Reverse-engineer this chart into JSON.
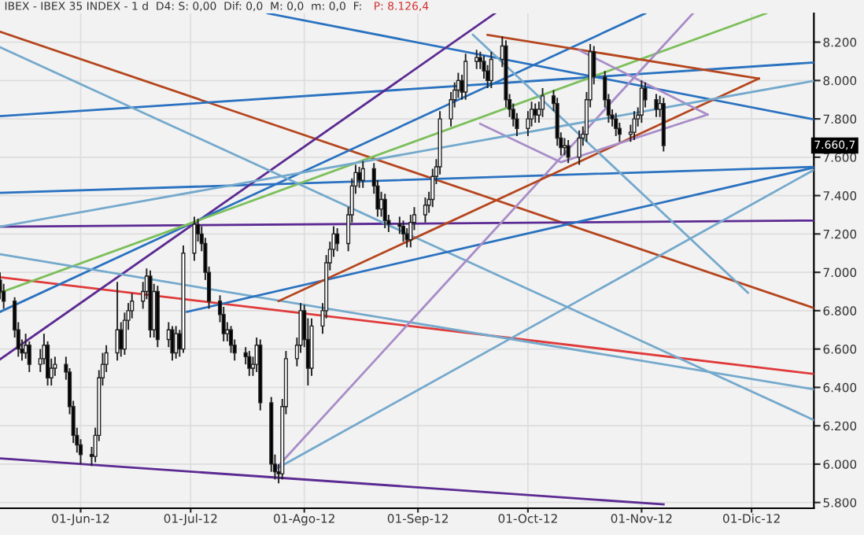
{
  "chart_data": {
    "type": "candlestick",
    "title": "IBEX - IBEX 35 INDEX - 1 d  D4: S: 0,00  Dif: 0,0  M: 0,0  m: 0,0  F:",
    "annotations": [
      "P: 8.126,4",
      {
        "text": "7.660,7",
        "y": 7660.7
      }
    ],
    "x": [
      "2012-05-10",
      "2012-05-11",
      "2012-05-14",
      "2012-05-15",
      "2012-05-16",
      "2012-05-17",
      "2012-05-18",
      "2012-05-21",
      "2012-05-22",
      "2012-05-23",
      "2012-05-24",
      "2012-05-25",
      "2012-05-28",
      "2012-05-29",
      "2012-05-30",
      "2012-05-31",
      "2012-06-01",
      "2012-06-04",
      "2012-06-05",
      "2012-06-06",
      "2012-06-07",
      "2012-06-08",
      "2012-06-11",
      "2012-06-12",
      "2012-06-13",
      "2012-06-14",
      "2012-06-15",
      "2012-06-18",
      "2012-06-19",
      "2012-06-20",
      "2012-06-21",
      "2012-06-22",
      "2012-06-25",
      "2012-06-26",
      "2012-06-27",
      "2012-06-28",
      "2012-06-29",
      "2012-07-02",
      "2012-07-03",
      "2012-07-04",
      "2012-07-05",
      "2012-07-06",
      "2012-07-09",
      "2012-07-10",
      "2012-07-11",
      "2012-07-12",
      "2012-07-13",
      "2012-07-16",
      "2012-07-17",
      "2012-07-18",
      "2012-07-19",
      "2012-07-20",
      "2012-07-23",
      "2012-07-24",
      "2012-07-25",
      "2012-07-26",
      "2012-07-27",
      "2012-07-30",
      "2012-07-31",
      "2012-08-01",
      "2012-08-02",
      "2012-08-03",
      "2012-08-06",
      "2012-08-07",
      "2012-08-08",
      "2012-08-09",
      "2012-08-10",
      "2012-08-13",
      "2012-08-14",
      "2012-08-15",
      "2012-08-16",
      "2012-08-17",
      "2012-08-20",
      "2012-08-21",
      "2012-08-22",
      "2012-08-23",
      "2012-08-24",
      "2012-08-27",
      "2012-08-28",
      "2012-08-29",
      "2012-08-30",
      "2012-08-31",
      "2012-09-03",
      "2012-09-04",
      "2012-09-05",
      "2012-09-06",
      "2012-09-07",
      "2012-09-10",
      "2012-09-11",
      "2012-09-12",
      "2012-09-13",
      "2012-09-14",
      "2012-09-17",
      "2012-09-18",
      "2012-09-19",
      "2012-09-20",
      "2012-09-21",
      "2012-09-24",
      "2012-09-25",
      "2012-09-26",
      "2012-09-27",
      "2012-09-28",
      "2012-10-01",
      "2012-10-02",
      "2012-10-03",
      "2012-10-04",
      "2012-10-05",
      "2012-10-08",
      "2012-10-09",
      "2012-10-10",
      "2012-10-11",
      "2012-10-12",
      "2012-10-15",
      "2012-10-16",
      "2012-10-17",
      "2012-10-18",
      "2012-10-19",
      "2012-10-22",
      "2012-10-23",
      "2012-10-24",
      "2012-10-25",
      "2012-10-26",
      "2012-10-29",
      "2012-10-30",
      "2012-10-31",
      "2012-11-01",
      "2012-11-02",
      "2012-11-05",
      "2012-11-06",
      "2012-11-07"
    ],
    "ohlc": [
      [
        6960,
        7000,
        6860,
        6900
      ],
      [
        6900,
        6940,
        6810,
        6850
      ],
      [
        6850,
        6870,
        6660,
        6700
      ],
      [
        6700,
        6740,
        6560,
        6600
      ],
      [
        6600,
        6650,
        6540,
        6580
      ],
      [
        6580,
        6680,
        6550,
        6620
      ],
      [
        6620,
        6640,
        6480,
        6520
      ],
      [
        6520,
        6600,
        6480,
        6550
      ],
      [
        6550,
        6680,
        6520,
        6620
      ],
      [
        6620,
        6640,
        6410,
        6450
      ],
      [
        6450,
        6550,
        6410,
        6500
      ],
      [
        6500,
        6560,
        6460,
        6520
      ],
      [
        6520,
        6560,
        6440,
        6480
      ],
      [
        6480,
        6500,
        6260,
        6300
      ],
      [
        6300,
        6330,
        6110,
        6150
      ],
      [
        6150,
        6190,
        6060,
        6100
      ],
      [
        6100,
        6130,
        6000,
        6050
      ],
      [
        6050,
        6090,
        5990,
        6040
      ],
      [
        6040,
        6190,
        6010,
        6150
      ],
      [
        6150,
        6490,
        6120,
        6450
      ],
      [
        6450,
        6580,
        6410,
        6520
      ],
      [
        6520,
        6620,
        6480,
        6580
      ],
      [
        6580,
        6950,
        6540,
        6700
      ],
      [
        6700,
        6740,
        6560,
        6600
      ],
      [
        6600,
        6790,
        6570,
        6750
      ],
      [
        6750,
        6840,
        6700,
        6800
      ],
      [
        6800,
        6890,
        6760,
        6850
      ],
      [
        6850,
        6950,
        6810,
        6900
      ],
      [
        6900,
        7020,
        6860,
        6980
      ],
      [
        6980,
        7010,
        6660,
        6700
      ],
      [
        6700,
        6940,
        6660,
        6900
      ],
      [
        6900,
        6930,
        6610,
        6650
      ],
      [
        6650,
        6740,
        6610,
        6700
      ],
      [
        6700,
        6720,
        6540,
        6580
      ],
      [
        6580,
        6720,
        6550,
        6680
      ],
      [
        6680,
        6700,
        6560,
        6600
      ],
      [
        6600,
        7140,
        6580,
        7100
      ],
      [
        7100,
        7290,
        7060,
        7250
      ],
      [
        7250,
        7280,
        7160,
        7200
      ],
      [
        7200,
        7240,
        7110,
        7150
      ],
      [
        7150,
        7180,
        6960,
        7000
      ],
      [
        7000,
        7030,
        6810,
        6850
      ],
      [
        6850,
        6880,
        6740,
        6780
      ],
      [
        6780,
        6820,
        6640,
        6680
      ],
      [
        6680,
        6740,
        6640,
        6700
      ],
      [
        6700,
        6720,
        6580,
        6620
      ],
      [
        6620,
        6650,
        6540,
        6580
      ],
      [
        6580,
        6610,
        6520,
        6560
      ],
      [
        6560,
        6590,
        6460,
        6500
      ],
      [
        6500,
        6560,
        6460,
        6520
      ],
      [
        6520,
        6660,
        6480,
        6620
      ],
      [
        6620,
        6650,
        6280,
        6320
      ],
      [
        6320,
        6350,
        5960,
        6000
      ],
      [
        6000,
        6050,
        5920,
        5960
      ],
      [
        5960,
        6000,
        5900,
        5950
      ],
      [
        5950,
        6340,
        5920,
        6300
      ],
      [
        6300,
        6590,
        6260,
        6550
      ],
      [
        6550,
        6660,
        6510,
        6620
      ],
      [
        6620,
        6840,
        6580,
        6800
      ],
      [
        6800,
        6830,
        6610,
        6650
      ],
      [
        6650,
        6760,
        6410,
        6500
      ],
      [
        6500,
        6760,
        6460,
        6720
      ],
      [
        6720,
        6840,
        6680,
        6800
      ],
      [
        6800,
        7090,
        6760,
        7050
      ],
      [
        7050,
        7160,
        7010,
        7120
      ],
      [
        7120,
        7240,
        7080,
        7200
      ],
      [
        7200,
        7230,
        7110,
        7150
      ],
      [
        7150,
        7340,
        7110,
        7300
      ],
      [
        7300,
        7490,
        7260,
        7450
      ],
      [
        7450,
        7560,
        7410,
        7520
      ],
      [
        7520,
        7550,
        7440,
        7480
      ],
      [
        7480,
        7580,
        7440,
        7540
      ],
      [
        7540,
        7570,
        7410,
        7450
      ],
      [
        7450,
        7480,
        7290,
        7330
      ],
      [
        7330,
        7420,
        7290,
        7380
      ],
      [
        7380,
        7410,
        7230,
        7270
      ],
      [
        7270,
        7300,
        7210,
        7250
      ],
      [
        7250,
        7290,
        7200,
        7240
      ],
      [
        7240,
        7270,
        7160,
        7200
      ],
      [
        7200,
        7230,
        7130,
        7170
      ],
      [
        7170,
        7300,
        7130,
        7260
      ],
      [
        7260,
        7340,
        7220,
        7300
      ],
      [
        7300,
        7390,
        7260,
        7350
      ],
      [
        7350,
        7420,
        7310,
        7380
      ],
      [
        7380,
        7540,
        7340,
        7500
      ],
      [
        7500,
        7590,
        7460,
        7550
      ],
      [
        7550,
        7840,
        7510,
        7800
      ],
      [
        7800,
        7940,
        7760,
        7900
      ],
      [
        7900,
        7990,
        7860,
        7950
      ],
      [
        7950,
        8040,
        7910,
        8000
      ],
      [
        8000,
        8030,
        7900,
        7940
      ],
      [
        7940,
        8140,
        7900,
        8100
      ],
      [
        8100,
        8160,
        8060,
        8120
      ],
      [
        8120,
        8150,
        8060,
        8100
      ],
      [
        8100,
        8130,
        8010,
        8050
      ],
      [
        8050,
        8080,
        7960,
        8000
      ],
      [
        8000,
        8150,
        7960,
        8110
      ],
      [
        8110,
        8230,
        8070,
        8180
      ],
      [
        8180,
        8210,
        7860,
        7900
      ],
      [
        7900,
        7930,
        7810,
        7850
      ],
      [
        7850,
        7880,
        7760,
        7800
      ],
      [
        7800,
        7830,
        7710,
        7750
      ],
      [
        7750,
        7840,
        7710,
        7800
      ],
      [
        7800,
        7890,
        7760,
        7850
      ],
      [
        7850,
        7880,
        7780,
        7820
      ],
      [
        7820,
        7890,
        7780,
        7850
      ],
      [
        7850,
        7960,
        7810,
        7920
      ],
      [
        7920,
        7950,
        7840,
        7880
      ],
      [
        7880,
        7910,
        7660,
        7700
      ],
      [
        7700,
        7730,
        7610,
        7650
      ],
      [
        7650,
        7700,
        7610,
        7660
      ],
      [
        7660,
        7690,
        7570,
        7600
      ],
      [
        7600,
        7740,
        7560,
        7700
      ],
      [
        7700,
        7760,
        7660,
        7720
      ],
      [
        7720,
        7940,
        7680,
        7900
      ],
      [
        7900,
        8190,
        7860,
        8150
      ],
      [
        8150,
        8180,
        7980,
        8020
      ],
      [
        8020,
        8050,
        7860,
        7900
      ],
      [
        7900,
        7930,
        7780,
        7820
      ],
      [
        7820,
        7850,
        7760,
        7800
      ],
      [
        7800,
        7830,
        7710,
        7750
      ],
      [
        7750,
        7780,
        7680,
        7720
      ],
      [
        7720,
        7770,
        7680,
        7730
      ],
      [
        7730,
        7840,
        7690,
        7800
      ],
      [
        7800,
        7860,
        7760,
        7820
      ],
      [
        7820,
        8000,
        7780,
        7960
      ],
      [
        7960,
        7990,
        7860,
        7900
      ],
      [
        7900,
        7930,
        7810,
        7850
      ],
      [
        7850,
        7920,
        7810,
        7880
      ],
      [
        7880,
        7910,
        7630,
        7660.7
      ]
    ],
    "series": [
      {
        "type": "line",
        "color": "#5b2a92",
        "x": [
          "2012-05-10",
          "2012-11-07"
        ],
        "values": [
          6030,
          5790
        ]
      },
      {
        "type": "line",
        "color": "#e03a3a",
        "x": [
          "2012-05-10",
          "2012-12-18"
        ],
        "values": [
          6974,
          6470
        ]
      },
      {
        "type": "line",
        "color": "#b5461e",
        "x": [
          "2012-05-10",
          "2012-12-18"
        ],
        "values": [
          8254,
          6814
        ]
      },
      {
        "type": "line",
        "color": "#5b2a92",
        "x": [
          "2012-05-10",
          "2012-12-18"
        ],
        "values": [
          7238,
          7270
        ]
      },
      {
        "type": "line",
        "color": "#2a72c0",
        "x": [
          "2012-05-10",
          "2012-12-18"
        ],
        "values": [
          7414,
          7550
        ]
      },
      {
        "type": "line",
        "color": "#2a72c0",
        "x": [
          "2012-05-10",
          "2012-12-18"
        ],
        "values": [
          7814,
          8094
        ]
      },
      {
        "type": "line",
        "color": "#2a72c0",
        "x": [
          "2012-07-22",
          "2012-12-18"
        ],
        "values": [
          8350,
          7797
        ]
      },
      {
        "type": "line",
        "color": "#5b2a92",
        "x": [
          "2012-05-10",
          "2012-09-22"
        ],
        "values": [
          6546,
          8350
        ]
      },
      {
        "type": "line",
        "color": "#2a72c0",
        "x": [
          "2012-05-10",
          "2012-11-02"
        ],
        "values": [
          6794,
          8350
        ]
      },
      {
        "type": "line",
        "color": "#7cbf5a",
        "x": [
          "2012-05-10",
          "2012-12-05"
        ],
        "values": [
          6894,
          8350
        ]
      },
      {
        "type": "line",
        "color": "#74a9cc",
        "x": [
          "2012-05-10",
          "2012-12-18"
        ],
        "values": [
          8174,
          6230
        ]
      },
      {
        "type": "line",
        "color": "#74a9cc",
        "x": [
          "2012-05-10",
          "2012-12-18"
        ],
        "values": [
          7094,
          6390
        ]
      },
      {
        "type": "line",
        "color": "#2a72c0",
        "x": [
          "2012-06-30",
          "2012-12-18"
        ],
        "values": [
          6794,
          7546
        ]
      },
      {
        "type": "line",
        "color": "#74a9cc",
        "x": [
          "2012-07-24",
          "2012-12-18"
        ],
        "values": [
          5972,
          7534
        ]
      },
      {
        "type": "line",
        "color": "#a88cc8",
        "x": [
          "2012-07-24",
          "2012-11-15"
        ],
        "values": [
          5972,
          8350
        ]
      },
      {
        "type": "line",
        "color": "#b5461e",
        "x": [
          "2012-07-25",
          "2012-12-03"
        ],
        "values": [
          6850,
          8010
        ]
      },
      {
        "type": "line",
        "color": "#b5461e",
        "x": [
          "2012-09-20",
          "2012-12-03"
        ],
        "values": [
          8238,
          8010
        ]
      },
      {
        "type": "line",
        "color": "#a88cc8",
        "x": [
          "2012-09-18",
          "2012-10-10",
          "2012-11-19"
        ],
        "values": [
          7774,
          7574,
          7822
        ]
      },
      {
        "type": "line",
        "color": "#a88cc8",
        "x": [
          "2012-10-15",
          "2012-11-19"
        ],
        "values": [
          8158,
          7822
        ]
      },
      {
        "type": "line",
        "color": "#74a9cc",
        "x": [
          "2012-05-10",
          "2012-12-18"
        ],
        "values": [
          7238,
          7998
        ]
      },
      {
        "type": "line",
        "color": "#74a9cc",
        "x": [
          "2012-09-16",
          "2012-11-30"
        ],
        "values": [
          8238,
          6894
        ]
      }
    ],
    "xlim": [
      "2012-05-10",
      "2012-12-18"
    ],
    "xticks": [
      {
        "value": "2012-06-01",
        "label": "01-Jun-12"
      },
      {
        "value": "2012-07-01",
        "label": "01-Jul-12"
      },
      {
        "value": "2012-08-01",
        "label": "01-Ago-12"
      },
      {
        "value": "2012-09-01",
        "label": "01-Sep-12"
      },
      {
        "value": "2012-10-01",
        "label": "01-Oct-12"
      },
      {
        "value": "2012-11-01",
        "label": "01-Nov-12"
      },
      {
        "value": "2012-12-01",
        "label": "01-Dic-12"
      }
    ],
    "ylim": [
      5770,
      8350
    ],
    "yticks": [
      {
        "value": 5800,
        "label": "5.800"
      },
      {
        "value": 6000,
        "label": "6.000"
      },
      {
        "value": 6200,
        "label": "6.200"
      },
      {
        "value": 6400,
        "label": "6.400"
      },
      {
        "value": 6600,
        "label": "6.600"
      },
      {
        "value": 6800,
        "label": "6.800"
      },
      {
        "value": 7000,
        "label": "7.000"
      },
      {
        "value": 7200,
        "label": "7.200"
      },
      {
        "value": 7400,
        "label": "7.400"
      },
      {
        "value": 7600,
        "label": "7.600"
      },
      {
        "value": 7800,
        "label": "7.800"
      },
      {
        "value": 8000,
        "label": "8.000"
      },
      {
        "value": 8200,
        "label": "8.200"
      }
    ],
    "grid": true
  }
}
